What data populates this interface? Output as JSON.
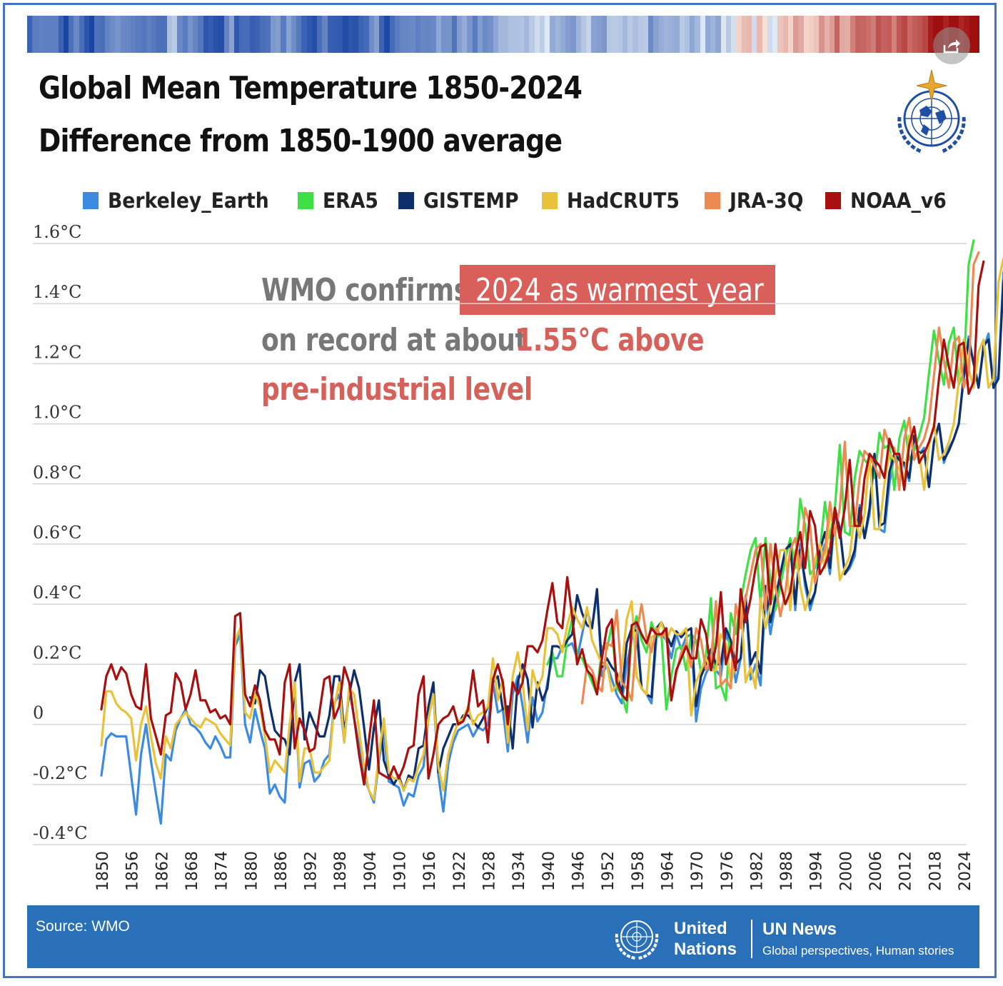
{
  "title": "Global Mean Temperature 1850-2024",
  "subtitle": "Difference from 1850-1900 average",
  "annotation": {
    "part1": "WMO confirms",
    "highlight": "2024 as warmest year",
    "part2": "on record at about",
    "value": "1.55°C above",
    "part3": "pre-industrial level"
  },
  "footer": {
    "source": "Source: WMO",
    "org_line1": "United",
    "org_line2": "Nations",
    "brand": "UN News",
    "tagline": "Global perspectives, Human stories"
  },
  "icons": {
    "share": "share-icon",
    "wmo": "wmo-logo-icon",
    "un": "un-emblem-icon"
  },
  "colors": {
    "Berkeley_Earth": "#3d8be0",
    "ERA5": "#3fe045",
    "GISTEMP": "#0e2f6b",
    "HadCRUT5": "#e8c23a",
    "JRA-3Q": "#ec8a52",
    "NOAA_v6": "#a80f0f",
    "annotation_red": "#d9605a",
    "footer_blue": "#2a70b8"
  },
  "chart_data": {
    "type": "line",
    "xlim": [
      1850,
      2024
    ],
    "ylim": [
      -0.4,
      1.6
    ],
    "grid": true,
    "legend_position": "top",
    "y_ticks": [
      1.6,
      1.4,
      1.2,
      1.0,
      0.8,
      0.6,
      0.4,
      0.2,
      0,
      -0.2,
      -0.4
    ],
    "y_tick_labels": [
      "1.6°C",
      "1.4°C",
      "1.2°C",
      "1.0°C",
      "0.8°C",
      "0.6°C",
      "0.4°C",
      "0.2°C",
      "0",
      "-0.2°C",
      "-0.4°C"
    ],
    "x_ticks": [
      1850,
      1856,
      1862,
      1868,
      1874,
      1880,
      1886,
      1892,
      1898,
      1904,
      1910,
      1916,
      1922,
      1928,
      1934,
      1940,
      1946,
      1952,
      1958,
      1964,
      1970,
      1976,
      1982,
      1988,
      1994,
      2000,
      2006,
      2012,
      2018,
      2024
    ],
    "series": [
      {
        "name": "Berkeley_Earth",
        "x_start": 1850,
        "values": [
          -0.17,
          -0.05,
          -0.03,
          -0.04,
          -0.04,
          -0.04,
          -0.17,
          -0.3,
          -0.1,
          0.0,
          -0.12,
          -0.23,
          -0.33,
          -0.1,
          -0.12,
          -0.02,
          0.02,
          0.05,
          0.0,
          -0.01,
          -0.03,
          -0.06,
          -0.08,
          -0.04,
          -0.07,
          -0.11,
          -0.11,
          0.26,
          0.3,
          0.0,
          -0.06,
          0.05,
          -0.02,
          -0.08,
          -0.23,
          -0.2,
          -0.24,
          -0.26,
          -0.02,
          0.12,
          -0.21,
          -0.13,
          -0.12,
          -0.19,
          -0.17,
          -0.12,
          -0.1,
          0.07,
          0.1,
          -0.06,
          0.12,
          0.02,
          -0.07,
          -0.17,
          -0.22,
          -0.26,
          -0.12,
          -0.02,
          -0.19,
          -0.2,
          -0.21,
          -0.27,
          -0.23,
          -0.24,
          -0.17,
          -0.14,
          0.02,
          0.1,
          -0.17,
          -0.29,
          -0.13,
          -0.06,
          -0.02,
          -0.01,
          0.0,
          -0.04,
          -0.01,
          -0.02,
          0.0,
          0.14,
          0.04,
          0.05,
          -0.09,
          0.1,
          0.16,
          0.06,
          -0.06,
          0.09,
          0.01,
          0.04,
          0.14,
          0.22,
          0.22,
          0.26,
          0.26,
          0.27,
          0.22,
          0.3,
          0.38,
          0.32,
          0.44,
          0.16,
          0.2,
          0.15,
          0.1,
          0.07,
          0.2,
          0.28,
          0.35,
          0.12,
          0.1,
          0.07,
          0.29,
          0.3,
          0.28,
          0.22,
          0.3,
          0.25,
          0.29,
          0.3,
          0.01,
          0.12,
          0.17,
          0.2,
          0.18,
          0.16,
          0.3,
          0.26,
          0.14,
          0.22,
          0.43,
          0.15,
          0.2,
          0.13,
          0.43,
          0.3,
          0.4,
          0.5,
          0.58,
          0.6,
          0.38,
          0.6,
          0.46,
          0.38,
          0.44,
          0.55,
          0.6,
          0.5,
          0.7,
          0.65,
          0.5,
          0.52,
          0.56,
          0.73,
          0.62,
          0.7,
          0.9,
          0.65,
          0.64,
          0.8,
          0.9,
          0.89,
          0.86,
          0.81,
          0.96,
          0.9,
          0.92,
          0.79,
          0.94,
          1.0,
          0.87,
          0.92,
          0.95,
          1.0,
          1.15,
          1.29,
          1.2,
          1.13,
          1.25,
          1.3,
          1.12,
          1.16,
          1.5,
          1.58
        ]
      },
      {
        "name": "ERA5",
        "x_start": 1940,
        "values": [
          0.2,
          0.24,
          0.16,
          0.16,
          0.28,
          0.35,
          0.23,
          0.22,
          0.18,
          0.14,
          0.1,
          0.26,
          0.25,
          0.33,
          0.12,
          0.1,
          0.04,
          0.3,
          0.36,
          0.28,
          0.24,
          0.34,
          0.29,
          0.3,
          0.05,
          0.16,
          0.25,
          0.26,
          0.18,
          0.3,
          0.28,
          0.17,
          0.23,
          0.42,
          0.12,
          0.13,
          0.08,
          0.37,
          0.3,
          0.41,
          0.5,
          0.58,
          0.62,
          0.4,
          0.62,
          0.48,
          0.38,
          0.46,
          0.55,
          0.62,
          0.52,
          0.75,
          0.66,
          0.5,
          0.52,
          0.58,
          0.74,
          0.62,
          0.72,
          0.93,
          0.64,
          0.63,
          0.82,
          0.91,
          0.88,
          0.86,
          0.82,
          0.97,
          0.92,
          0.93,
          0.78,
          0.95,
          1.01,
          0.88,
          0.91,
          0.96,
          1.02,
          1.17,
          1.31,
          1.21,
          1.13,
          1.27,
          1.32,
          1.13,
          1.17,
          1.53,
          1.61
        ]
      },
      {
        "name": "GISTEMP",
        "x_start": 1880,
        "values": [
          0.09,
          0.07,
          0.18,
          0.16,
          0.06,
          -0.02,
          -0.04,
          -0.05,
          -0.1,
          0.14,
          0.2,
          -0.05,
          0.04,
          0.0,
          -0.04,
          -0.04,
          0.03,
          0.16,
          0.16,
          -0.03,
          0.1,
          0.18,
          0.12,
          -0.01,
          -0.15,
          -0.01,
          0.08,
          -0.12,
          -0.17,
          -0.2,
          -0.17,
          -0.22,
          -0.17,
          -0.18,
          -0.08,
          -0.07,
          0.06,
          0.14,
          -0.16,
          -0.08,
          -0.04,
          0.0,
          0.0,
          0.03,
          0.03,
          0.01,
          -0.01,
          0.02,
          0.06,
          0.14,
          0.16,
          0.05,
          0.06,
          -0.08,
          0.14,
          0.2,
          0.15,
          -0.01,
          0.14,
          0.08,
          0.12,
          0.26,
          0.26,
          0.25,
          0.28,
          0.3,
          0.43,
          0.37,
          0.33,
          0.32,
          0.45,
          0.19,
          0.22,
          0.19,
          0.17,
          0.1,
          0.27,
          0.32,
          0.31,
          0.12,
          0.1,
          0.09,
          0.32,
          0.34,
          0.3,
          0.26,
          0.31,
          0.29,
          0.31,
          0.32,
          0.06,
          0.16,
          0.2,
          0.25,
          0.2,
          0.2,
          0.32,
          0.28,
          0.2,
          0.22,
          0.42,
          0.2,
          0.24,
          0.17,
          0.46,
          0.34,
          0.42,
          0.5,
          0.58,
          0.6,
          0.4,
          0.58,
          0.48,
          0.4,
          0.44,
          0.58,
          0.64,
          0.52,
          0.72,
          0.65,
          0.5,
          0.53,
          0.58,
          0.72,
          0.62,
          0.72,
          0.9,
          0.66,
          0.67,
          0.84,
          0.9,
          0.88,
          0.87,
          0.82,
          0.96,
          0.9,
          0.91,
          0.79,
          0.94,
          1.0,
          0.88,
          0.91,
          0.95,
          1.0,
          1.16,
          1.28,
          1.2,
          1.12,
          1.26,
          1.28,
          1.12,
          1.15,
          1.47,
          1.55
        ]
      },
      {
        "name": "HadCRUT5",
        "x_start": 1850,
        "values": [
          -0.07,
          0.11,
          0.11,
          0.07,
          0.05,
          0.04,
          0.02,
          -0.12,
          0.0,
          0.06,
          -0.04,
          -0.13,
          -0.18,
          -0.04,
          -0.08,
          0.0,
          0.02,
          0.04,
          0.02,
          0.0,
          -0.01,
          0.02,
          0.01,
          0.0,
          -0.03,
          -0.05,
          -0.07,
          0.28,
          0.32,
          0.04,
          0.02,
          0.1,
          0.06,
          -0.04,
          -0.16,
          -0.12,
          -0.14,
          -0.16,
          0.0,
          0.14,
          -0.19,
          -0.08,
          -0.08,
          -0.16,
          -0.16,
          -0.14,
          -0.12,
          0.06,
          0.14,
          -0.06,
          0.12,
          0.1,
          -0.02,
          -0.14,
          -0.22,
          -0.25,
          -0.1,
          0.02,
          -0.16,
          -0.18,
          -0.18,
          -0.22,
          -0.18,
          -0.19,
          -0.14,
          -0.1,
          0.02,
          0.1,
          -0.14,
          -0.22,
          -0.1,
          -0.04,
          0.01,
          0.02,
          0.06,
          0.0,
          0.03,
          0.04,
          0.06,
          0.22,
          0.08,
          0.15,
          -0.06,
          0.16,
          0.24,
          0.14,
          -0.02,
          0.18,
          0.12,
          0.16,
          0.32,
          0.32,
          0.3,
          0.24,
          0.33,
          0.39,
          0.35,
          0.32,
          0.39,
          0.28,
          0.24,
          0.2,
          0.2,
          0.11,
          0.13,
          0.19,
          0.35,
          0.41,
          0.16,
          0.12,
          0.1,
          0.29,
          0.3,
          0.34,
          0.28,
          0.32,
          0.3,
          0.3,
          0.32,
          0.03,
          0.14,
          0.18,
          0.22,
          0.18,
          0.18,
          0.3,
          0.27,
          0.14,
          0.2,
          0.41,
          0.14,
          0.19,
          0.12,
          0.42,
          0.32,
          0.4,
          0.49,
          0.58,
          0.58,
          0.38,
          0.58,
          0.46,
          0.38,
          0.44,
          0.55,
          0.6,
          0.52,
          0.7,
          0.65,
          0.48,
          0.52,
          0.56,
          0.7,
          0.62,
          0.7,
          0.9,
          0.65,
          0.65,
          0.8,
          0.9,
          0.88,
          0.85,
          0.81,
          0.96,
          0.9,
          0.9,
          0.78,
          0.93,
          1.0,
          0.88,
          0.9,
          0.94,
          1.0,
          1.14,
          1.28,
          1.18,
          1.12,
          1.24,
          1.28,
          1.12,
          1.15,
          1.47,
          1.55
        ]
      },
      {
        "name": "JRA-3Q",
        "x_start": 1947,
        "values": [
          0.07,
          0.2,
          0.18,
          0.13,
          0.11,
          0.27,
          0.26,
          0.38,
          0.14,
          0.12,
          0.08,
          0.3,
          0.4,
          0.29,
          0.24,
          0.32,
          0.29,
          0.31,
          0.08,
          0.17,
          0.24,
          0.27,
          0.19,
          0.32,
          0.28,
          0.18,
          0.21,
          0.41,
          0.13,
          0.15,
          0.12,
          0.4,
          0.32,
          0.42,
          0.5,
          0.58,
          0.6,
          0.38,
          0.6,
          0.46,
          0.36,
          0.44,
          0.58,
          0.62,
          0.52,
          0.72,
          0.66,
          0.47,
          0.53,
          0.58,
          0.74,
          0.63,
          0.72,
          0.94,
          0.66,
          0.66,
          0.82,
          0.91,
          0.89,
          0.86,
          0.82,
          0.98,
          0.93,
          0.92,
          0.78,
          0.95,
          1.02,
          0.88,
          0.92,
          0.95,
          1.01,
          1.16,
          1.32,
          1.21,
          1.12,
          1.27,
          1.29,
          1.12,
          1.17,
          1.53,
          1.57
        ]
      },
      {
        "name": "NOAA_v6",
        "x_start": 1850,
        "values": [
          0.05,
          0.16,
          0.2,
          0.15,
          0.19,
          0.17,
          0.1,
          0.06,
          0.05,
          0.2,
          0.02,
          -0.04,
          -0.1,
          0.03,
          0.04,
          0.17,
          0.14,
          0.05,
          0.1,
          0.18,
          0.08,
          0.08,
          0.04,
          0.05,
          0.02,
          0.03,
          0.0,
          0.36,
          0.37,
          0.1,
          0.06,
          0.13,
          0.08,
          -0.02,
          -0.05,
          -0.05,
          -0.1,
          0.14,
          0.2,
          -0.08,
          0.02,
          -0.02,
          -0.09,
          -0.08,
          0.04,
          0.15,
          0.16,
          0.02,
          0.06,
          0.19,
          0.14,
          0.02,
          -0.1,
          -0.2,
          -0.05,
          0.08,
          -0.16,
          -0.17,
          -0.18,
          -0.14,
          -0.18,
          -0.14,
          -0.08,
          -0.07,
          0.1,
          0.16,
          -0.18,
          -0.1,
          0.0,
          0.02,
          0.03,
          0.06,
          0.0,
          0.01,
          0.05,
          0.18,
          0.06,
          0.08,
          -0.06,
          0.15,
          0.2,
          0.14,
          0.0,
          0.14,
          0.1,
          0.14,
          0.26,
          0.26,
          0.24,
          0.28,
          0.38,
          0.47,
          0.34,
          0.32,
          0.49,
          0.36,
          0.2,
          0.25,
          0.18,
          0.16,
          0.1,
          0.22,
          0.32,
          0.35,
          0.14,
          0.1,
          0.08,
          0.33,
          0.34,
          0.3,
          0.27,
          0.32,
          0.3,
          0.3,
          0.32,
          0.08,
          0.18,
          0.22,
          0.26,
          0.22,
          0.22,
          0.35,
          0.3,
          0.18,
          0.26,
          0.44,
          0.2,
          0.26,
          0.18,
          0.45,
          0.34,
          0.42,
          0.52,
          0.59,
          0.6,
          0.4,
          0.6,
          0.47,
          0.4,
          0.44,
          0.56,
          0.64,
          0.52,
          0.71,
          0.66,
          0.5,
          0.53,
          0.58,
          0.72,
          0.62,
          0.72,
          0.88,
          0.66,
          0.66,
          0.82,
          0.9,
          0.88,
          0.86,
          0.82,
          0.95,
          0.9,
          0.9,
          0.78,
          0.93,
          0.99,
          0.87,
          0.9,
          0.94,
          0.99,
          1.15,
          1.28,
          1.19,
          1.12,
          1.26,
          1.27,
          1.1,
          1.14,
          1.46,
          1.54
        ]
      }
    ]
  }
}
